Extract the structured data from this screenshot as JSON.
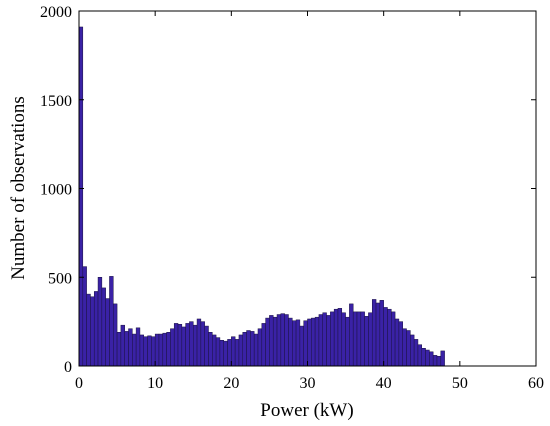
{
  "chart_data": {
    "type": "bar",
    "xlabel": "Power (kW)",
    "ylabel": "Number of observations",
    "xlim": [
      0,
      60
    ],
    "ylim": [
      0,
      2000
    ],
    "xticks": [
      0,
      10,
      20,
      30,
      40,
      50,
      60
    ],
    "yticks": [
      0,
      500,
      1000,
      1500,
      2000
    ],
    "grid": false,
    "bin_width": 0.5,
    "bin_start": 0,
    "values": [
      1910,
      560,
      405,
      390,
      420,
      500,
      440,
      380,
      505,
      350,
      190,
      230,
      195,
      210,
      180,
      215,
      175,
      165,
      170,
      165,
      180,
      180,
      185,
      190,
      210,
      240,
      235,
      220,
      240,
      250,
      230,
      265,
      250,
      225,
      190,
      175,
      160,
      145,
      140,
      150,
      165,
      150,
      175,
      190,
      200,
      195,
      180,
      210,
      240,
      270,
      285,
      275,
      290,
      295,
      290,
      270,
      255,
      260,
      225,
      255,
      265,
      270,
      275,
      290,
      300,
      285,
      305,
      320,
      325,
      300,
      275,
      350,
      305,
      305,
      305,
      280,
      300,
      375,
      355,
      370,
      330,
      320,
      305,
      265,
      250,
      210,
      200,
      175,
      150,
      120,
      100,
      90,
      80,
      60,
      55,
      85
    ]
  }
}
